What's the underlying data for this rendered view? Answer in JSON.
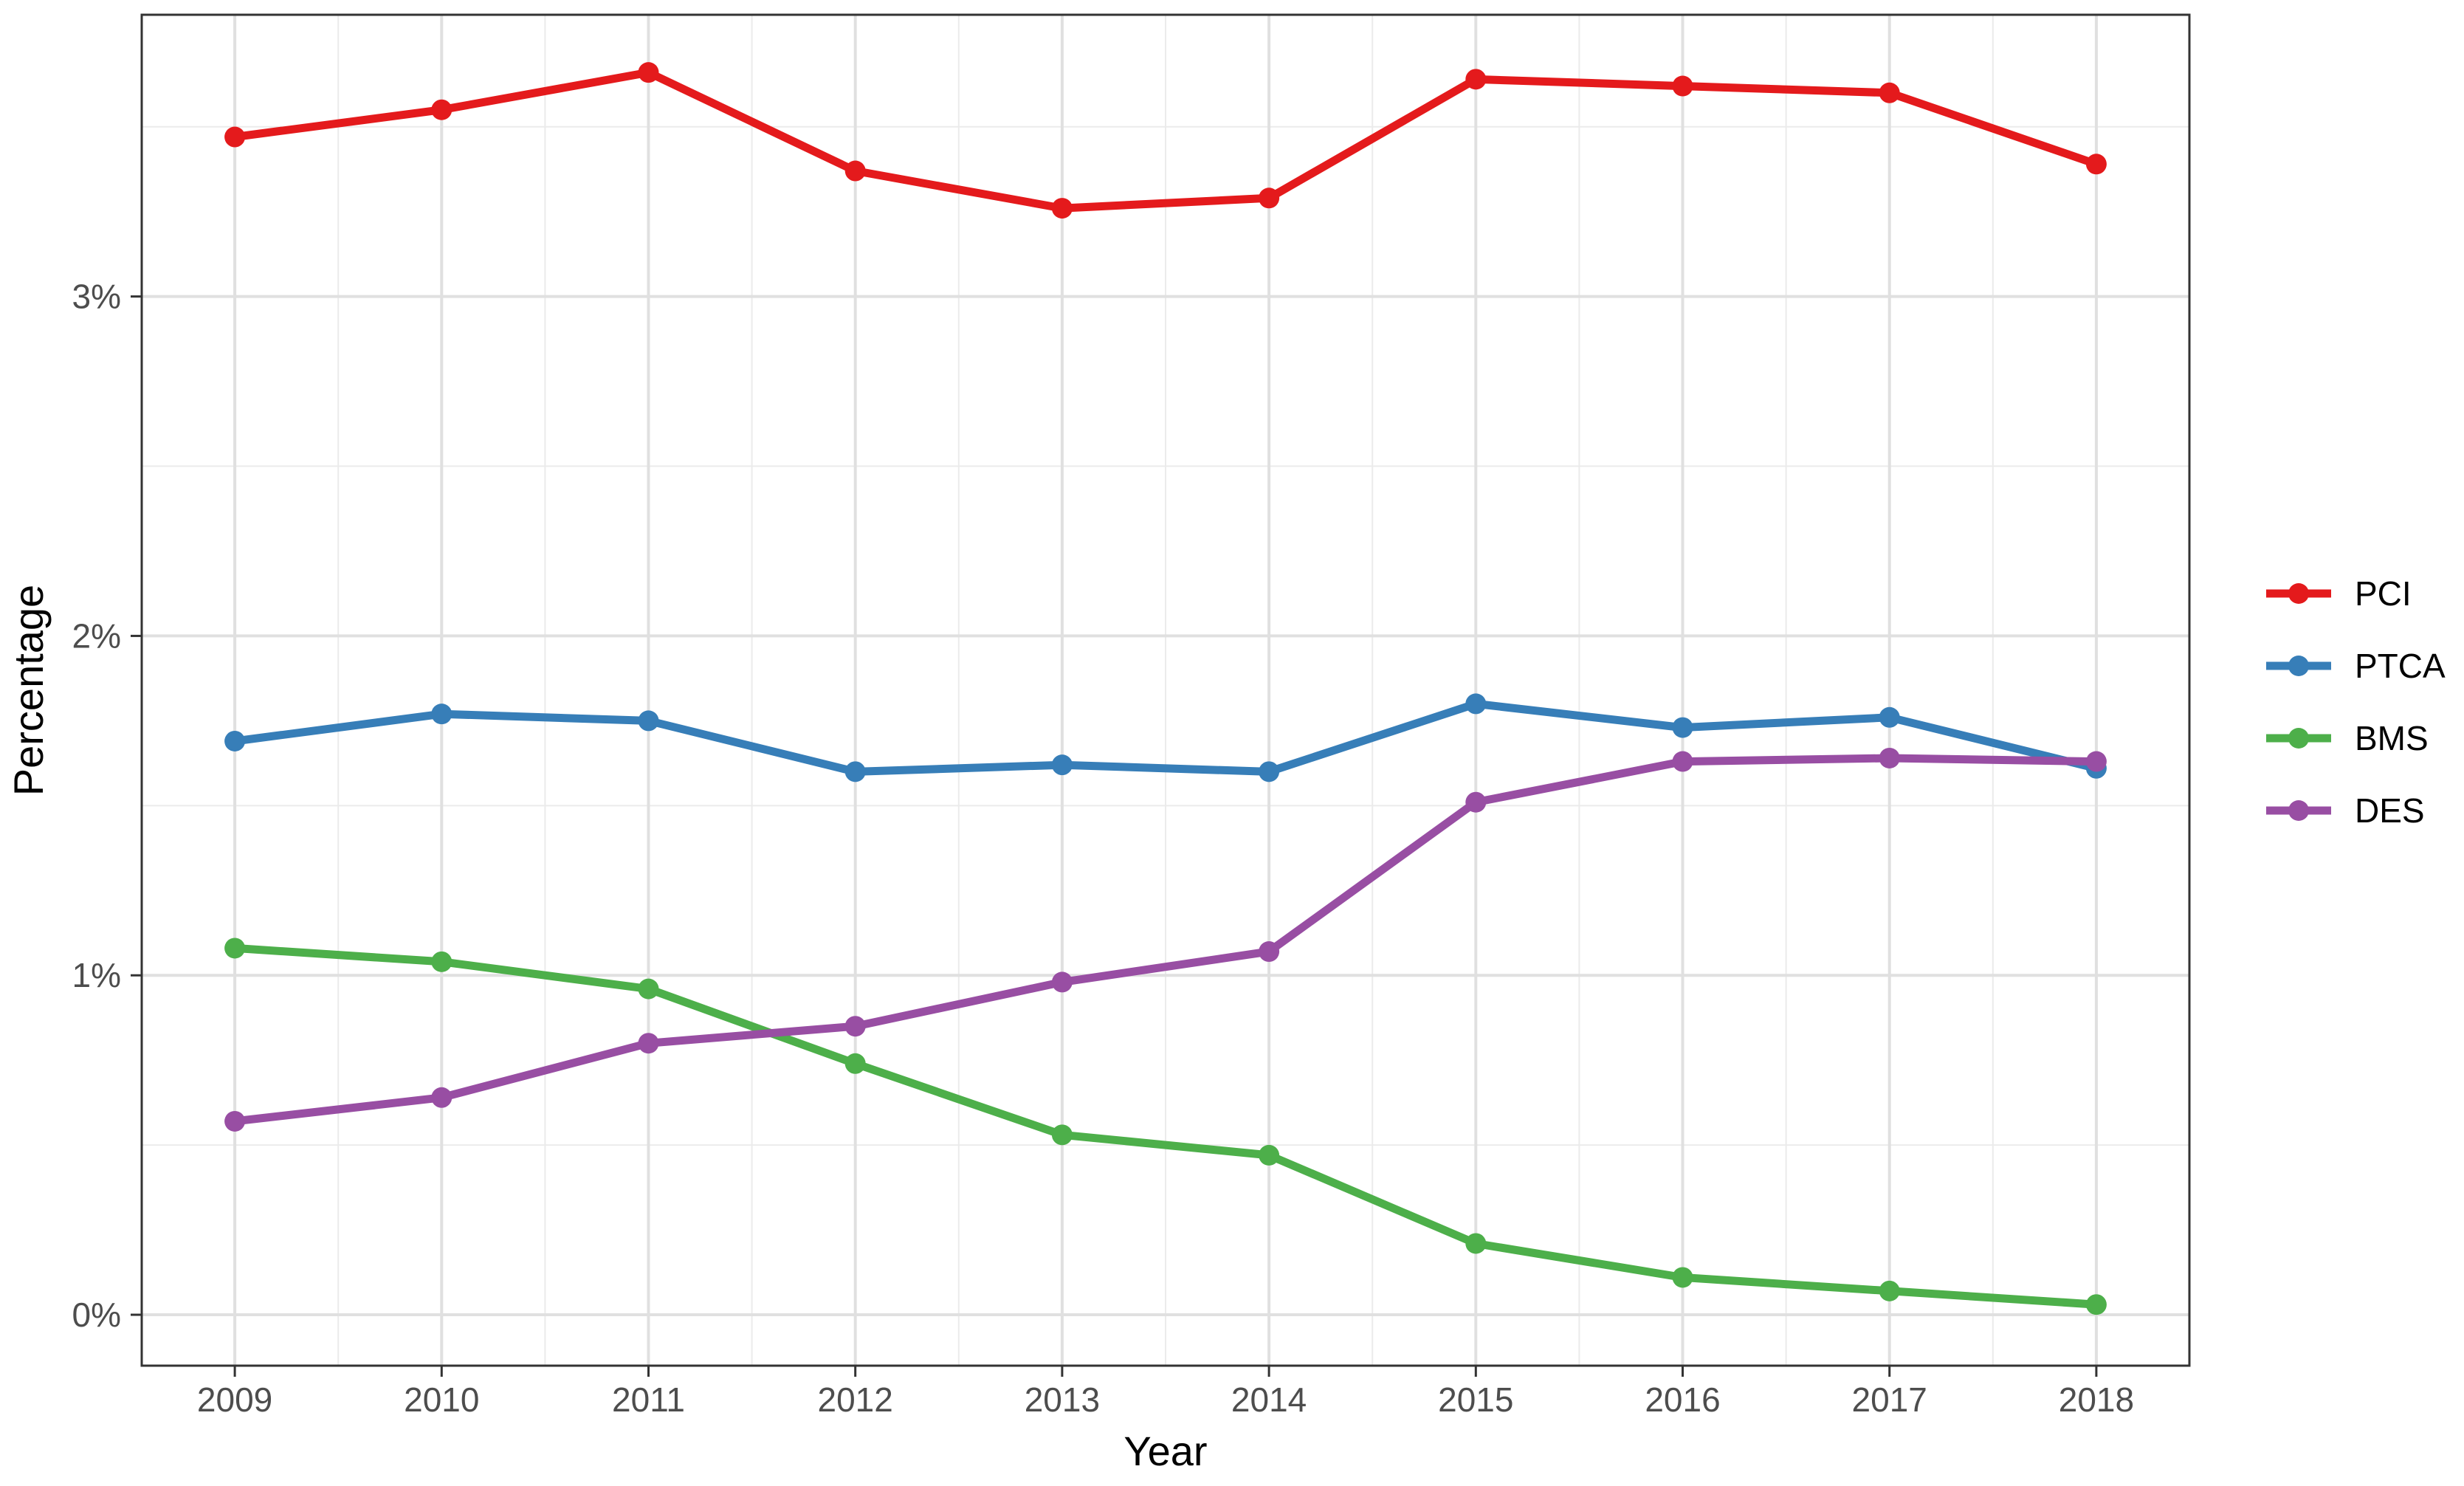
{
  "chart_data": {
    "type": "line",
    "title": "",
    "xlabel": "Year",
    "ylabel": "Percentage",
    "x": [
      2009,
      2010,
      2011,
      2012,
      2013,
      2014,
      2015,
      2016,
      2017,
      2018
    ],
    "x_tick_labels": [
      "2009",
      "2010",
      "2011",
      "2012",
      "2013",
      "2014",
      "2015",
      "2016",
      "2017",
      "2018"
    ],
    "y_ticks": [
      0,
      1,
      2,
      3
    ],
    "y_tick_labels": [
      "0%",
      "1%",
      "2%",
      "3%"
    ],
    "ylim": [
      -0.15,
      3.83
    ],
    "xlim": [
      2008.55,
      2018.45
    ],
    "y_unit": "percent",
    "grid": true,
    "legend_position": "right",
    "series": [
      {
        "name": "PCI",
        "color": "#E41A1C",
        "values": [
          3.47,
          3.55,
          3.66,
          3.37,
          3.26,
          3.29,
          3.64,
          3.62,
          3.6,
          3.39
        ]
      },
      {
        "name": "PTCA",
        "color": "#377EB8",
        "values": [
          1.69,
          1.77,
          1.75,
          1.6,
          1.62,
          1.6,
          1.8,
          1.73,
          1.76,
          1.61
        ]
      },
      {
        "name": "BMS",
        "color": "#4DAF4A",
        "values": [
          1.08,
          1.04,
          0.96,
          0.74,
          0.53,
          0.47,
          0.21,
          0.11,
          0.07,
          0.03
        ]
      },
      {
        "name": "DES",
        "color": "#984EA3",
        "values": [
          0.57,
          0.64,
          0.8,
          0.85,
          0.98,
          1.07,
          1.51,
          1.63,
          1.64,
          1.63
        ]
      }
    ]
  }
}
